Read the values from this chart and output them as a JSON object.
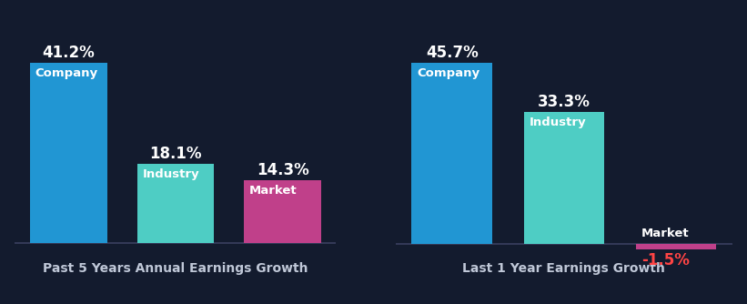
{
  "background_color": "#131b2e",
  "chart1": {
    "title": "Past 5 Years Annual Earnings Growth",
    "bars": [
      {
        "label": "Company",
        "value": 41.2,
        "color": "#2196d3"
      },
      {
        "label": "Industry",
        "value": 18.1,
        "color": "#4ecdc4"
      },
      {
        "label": "Market",
        "value": 14.3,
        "color": "#c0408a"
      }
    ]
  },
  "chart2": {
    "title": "Last 1 Year Earnings Growth",
    "bars": [
      {
        "label": "Company",
        "value": 45.7,
        "color": "#2196d3"
      },
      {
        "label": "Industry",
        "value": 33.3,
        "color": "#4ecdc4"
      },
      {
        "label": "Market",
        "value": -1.5,
        "color": "#c0408a"
      }
    ]
  },
  "text_color": "#ffffff",
  "title_color": "#c0c8d8",
  "label_fontsize": 9.5,
  "value_fontsize": 12,
  "title_fontsize": 10,
  "bar_width": 0.72,
  "neg_value_color": "#ff4444"
}
